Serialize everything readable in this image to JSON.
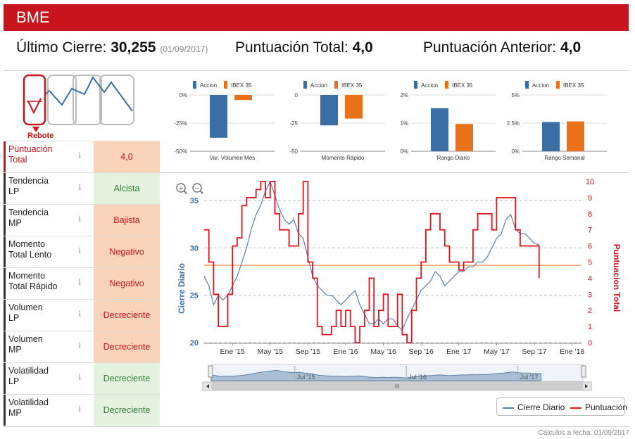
{
  "header": {
    "title": "BME"
  },
  "summary": {
    "close_label": "Último Cierre:",
    "close_value": "30,255",
    "close_date": "(01/09/2017)",
    "total_label": "Puntuación Total:",
    "total_value": "4,0",
    "prev_label": "Puntuación Anterior:",
    "prev_value": "4,0"
  },
  "pattern": {
    "label": "Rebote"
  },
  "mini_charts": [
    {
      "caption": "Var. Volumen Mes",
      "ticks": [
        "0%",
        "-25%",
        "-50%"
      ],
      "legend": [
        "Accion",
        "IBEX 35"
      ],
      "min": -50,
      "max": 0,
      "accion": -38,
      "ibex": -4.5
    },
    {
      "caption": "Momento Rápido",
      "ticks": [
        "0",
        "-25",
        "-50"
      ],
      "legend": [
        "Accion",
        "IBEX 35"
      ],
      "min": -50,
      "max": 0,
      "accion": -27,
      "ibex": -21
    },
    {
      "caption": "Rango Diario",
      "ticks": [
        "2%",
        "1%",
        "0%"
      ],
      "legend": [
        "Accion",
        "IBEX 35"
      ],
      "min": 0,
      "max": 2,
      "accion": 1.53,
      "ibex": 0.97
    },
    {
      "caption": "Rango Semanal",
      "ticks": [
        "5%",
        "2.5%",
        "0%"
      ],
      "legend": [
        "Accion",
        "IBEX 35"
      ],
      "min": 0,
      "max": 5,
      "accion": 2.6,
      "ibex": 2.65
    }
  ],
  "ratings": [
    {
      "label1": "Puntuación",
      "label2": "Total",
      "value": "4,0",
      "tone": "orange",
      "highlight": true
    },
    {
      "label1": "Tendencia",
      "label2": "LP",
      "value": "Alcista",
      "tone": "green",
      "highlight": false
    },
    {
      "label1": "Tendencia",
      "label2": "MP",
      "value": "Bajista",
      "tone": "orange",
      "highlight": false
    },
    {
      "label1": "Momento",
      "label2": "Total Lento",
      "value": "Negativo",
      "tone": "orange",
      "highlight": false
    },
    {
      "label1": "Momento",
      "label2": "Total Rápido",
      "value": "Negativo",
      "tone": "orange",
      "highlight": false
    },
    {
      "label1": "Volumen",
      "label2": "LP",
      "value": "Decreciente",
      "tone": "orange",
      "highlight": false
    },
    {
      "label1": "Volumen",
      "label2": "MP",
      "value": "Decreciente",
      "tone": "orange",
      "highlight": false
    },
    {
      "label1": "Volatilidad",
      "label2": "LP",
      "value": "Decreciente",
      "tone": "green",
      "highlight": false
    },
    {
      "label1": "Volatilidad",
      "label2": "MP",
      "value": "Decreciente",
      "tone": "green",
      "highlight": false
    }
  ],
  "chart_data": {
    "type": "line",
    "ylabel_left": "Cierre Diario",
    "ylabel_right": "Puntuacion Total",
    "y_left_ticks": [
      "20",
      "25",
      "30",
      "35"
    ],
    "y_left_range": [
      20,
      37
    ],
    "y_right_ticks": [
      "0",
      "1",
      "2",
      "3",
      "4",
      "5",
      "6",
      "7",
      "8",
      "9",
      "10"
    ],
    "y_right_range": [
      0,
      10
    ],
    "x_ticks": [
      "Ene '15",
      "May '15",
      "Sep '15",
      "Ene '16",
      "May '16",
      "Sep '16",
      "Ene '17",
      "May '17",
      "Sep '17",
      "Ene '18"
    ],
    "x_tick_months": [
      0,
      4,
      8,
      12,
      16,
      20,
      24,
      28,
      32,
      36
    ],
    "x_range_months": [
      -3,
      37
    ],
    "navigator_labels": [
      "Jul '15",
      "Jul '16",
      "Jul '17"
    ],
    "reference_line": 4.8,
    "series": [
      {
        "name": "Cierre Diario",
        "color": "#5a7fa8",
        "x": [
          -3,
          -2.5,
          -2,
          -1.5,
          -1,
          -0.5,
          0,
          0.5,
          1,
          1.5,
          2,
          2.5,
          3,
          3.5,
          4,
          4.5,
          5,
          5.5,
          6,
          6.5,
          7,
          7.5,
          8,
          8.5,
          9,
          9.5,
          10,
          10.5,
          11,
          11.5,
          12,
          12.5,
          13,
          13.5,
          14,
          14.5,
          15,
          15.5,
          16,
          16.5,
          17,
          17.5,
          18,
          18.5,
          19,
          19.5,
          20,
          20.5,
          21,
          21.5,
          22,
          22.5,
          23,
          23.5,
          24,
          24.5,
          25,
          25.5,
          26,
          26.5,
          27,
          27.5,
          28,
          28.5,
          29,
          29.5,
          30,
          30.5,
          31,
          31.5,
          32,
          32.5
        ],
        "values": [
          27,
          26,
          24,
          25,
          24.5,
          25,
          26,
          27,
          28.5,
          30,
          32,
          33.5,
          34.5,
          36,
          37,
          35.5,
          34,
          33,
          32.5,
          33,
          31.5,
          31,
          29,
          27,
          26,
          25.5,
          25,
          25,
          24.5,
          24,
          24.5,
          25,
          25.5,
          24,
          23,
          22,
          22,
          22.5,
          22,
          22.5,
          22.5,
          21.8,
          21.3,
          22.5,
          23.5,
          24.5,
          25.5,
          26,
          26.5,
          27.5,
          27,
          26,
          26.5,
          27,
          27.5,
          27.5,
          28,
          28,
          28.5,
          28.5,
          29,
          30,
          31,
          31.5,
          33,
          33.5,
          32,
          31.5,
          31.5,
          31,
          30.5,
          30.3
        ]
      },
      {
        "name": "Puntuación",
        "color": "#e0141e",
        "x": [
          -3,
          -2.5,
          -2,
          -1.5,
          -1,
          -0.5,
          0,
          0.5,
          1,
          1.5,
          2,
          2.5,
          3,
          3.5,
          4,
          4.5,
          5,
          5.5,
          6,
          6.5,
          7,
          7.5,
          8,
          8.5,
          9,
          9.5,
          10,
          10.5,
          11,
          11.5,
          12,
          12.5,
          13,
          13.5,
          14,
          14.5,
          15,
          15.5,
          16,
          16.5,
          17,
          17.5,
          18,
          18.5,
          19,
          19.5,
          20,
          20.5,
          21,
          21.5,
          22,
          22.5,
          23,
          23.5,
          24,
          24.5,
          25,
          25.5,
          26,
          26.5,
          27,
          27.5,
          28,
          28.5,
          29,
          29.5,
          30,
          30.5,
          31,
          31.5,
          32,
          32.5
        ],
        "values": [
          7,
          5,
          3,
          1,
          1,
          3,
          6,
          6.5,
          8.5,
          9,
          9,
          9.5,
          10,
          9,
          10,
          8,
          7,
          7,
          6,
          6,
          8,
          10,
          5,
          4,
          1,
          0.5,
          0.5,
          1,
          2,
          1,
          2,
          1,
          0,
          1,
          2,
          4,
          1,
          2,
          3,
          1,
          1,
          3,
          0.5,
          0,
          2,
          4,
          5,
          7,
          8,
          8,
          7,
          6,
          5,
          5,
          4.5,
          5,
          5,
          7,
          8,
          8,
          8,
          7,
          9,
          9,
          9,
          9,
          7,
          6,
          6,
          6,
          6,
          4
        ]
      }
    ]
  },
  "zoom": {
    "in_label": "+",
    "out_label": "−"
  },
  "legend": {
    "close_label": "Cierre Diario",
    "score_label": "Puntuación"
  },
  "footer": {
    "calc_date": "Cálculos a fecha: 01/09/2017"
  },
  "colors": {
    "accion": "#3a6ea5",
    "ibex": "#e8711a",
    "brand": "#c8141c",
    "close": "#5a7fa8",
    "score": "#e0141e"
  }
}
